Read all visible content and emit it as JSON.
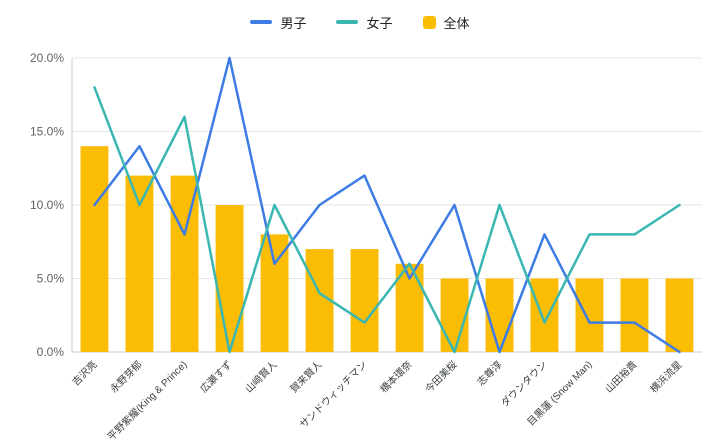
{
  "chart_data": {
    "type": "combo",
    "title": "",
    "xlabel": "",
    "ylabel": "",
    "ylim": [
      0,
      20
    ],
    "y_tick_step": 5,
    "y_ticks": [
      "0.0%",
      "5.0%",
      "10.0%",
      "15.0%",
      "20.0%"
    ],
    "x_tick_rotation": -45,
    "grid": true,
    "legend_position": "top",
    "values_unit": "%",
    "categories": [
      "吉沢亮",
      "永野芽郁",
      "平野紫耀(King & Prince)",
      "広瀬すず",
      "山﨑賢人",
      "賀来賢人",
      "サンドウィッチマン",
      "橋本環奈",
      "今田美桜",
      "志尊淳",
      "ダウンタウン",
      "目黒蓮 (Snow Man)",
      "山田裕貴",
      "横浜流星"
    ],
    "series": [
      {
        "name": "男子",
        "id": "boys",
        "type": "line",
        "color": "#3D7BE5",
        "values": [
          10,
          14,
          8,
          20,
          6,
          10,
          12,
          5,
          10,
          0,
          8,
          2,
          2,
          0
        ]
      },
      {
        "name": "女子",
        "id": "girls",
        "type": "line",
        "color": "#3BB7B1",
        "values": [
          18,
          10,
          16,
          0,
          10,
          4,
          2,
          6,
          0,
          10,
          2,
          8,
          8,
          10
        ]
      },
      {
        "name": "全体",
        "id": "overall",
        "type": "bar",
        "color": "#FBBC04",
        "values": [
          14,
          12,
          12,
          10,
          8,
          7,
          7,
          6,
          5,
          5,
          5,
          5,
          5,
          5
        ]
      }
    ],
    "colors": {
      "gridline": "#e6e6e6",
      "axis_line": "#cccccc",
      "y_tick_label": "#5f6368",
      "x_tick_label": "#3c4043"
    }
  }
}
